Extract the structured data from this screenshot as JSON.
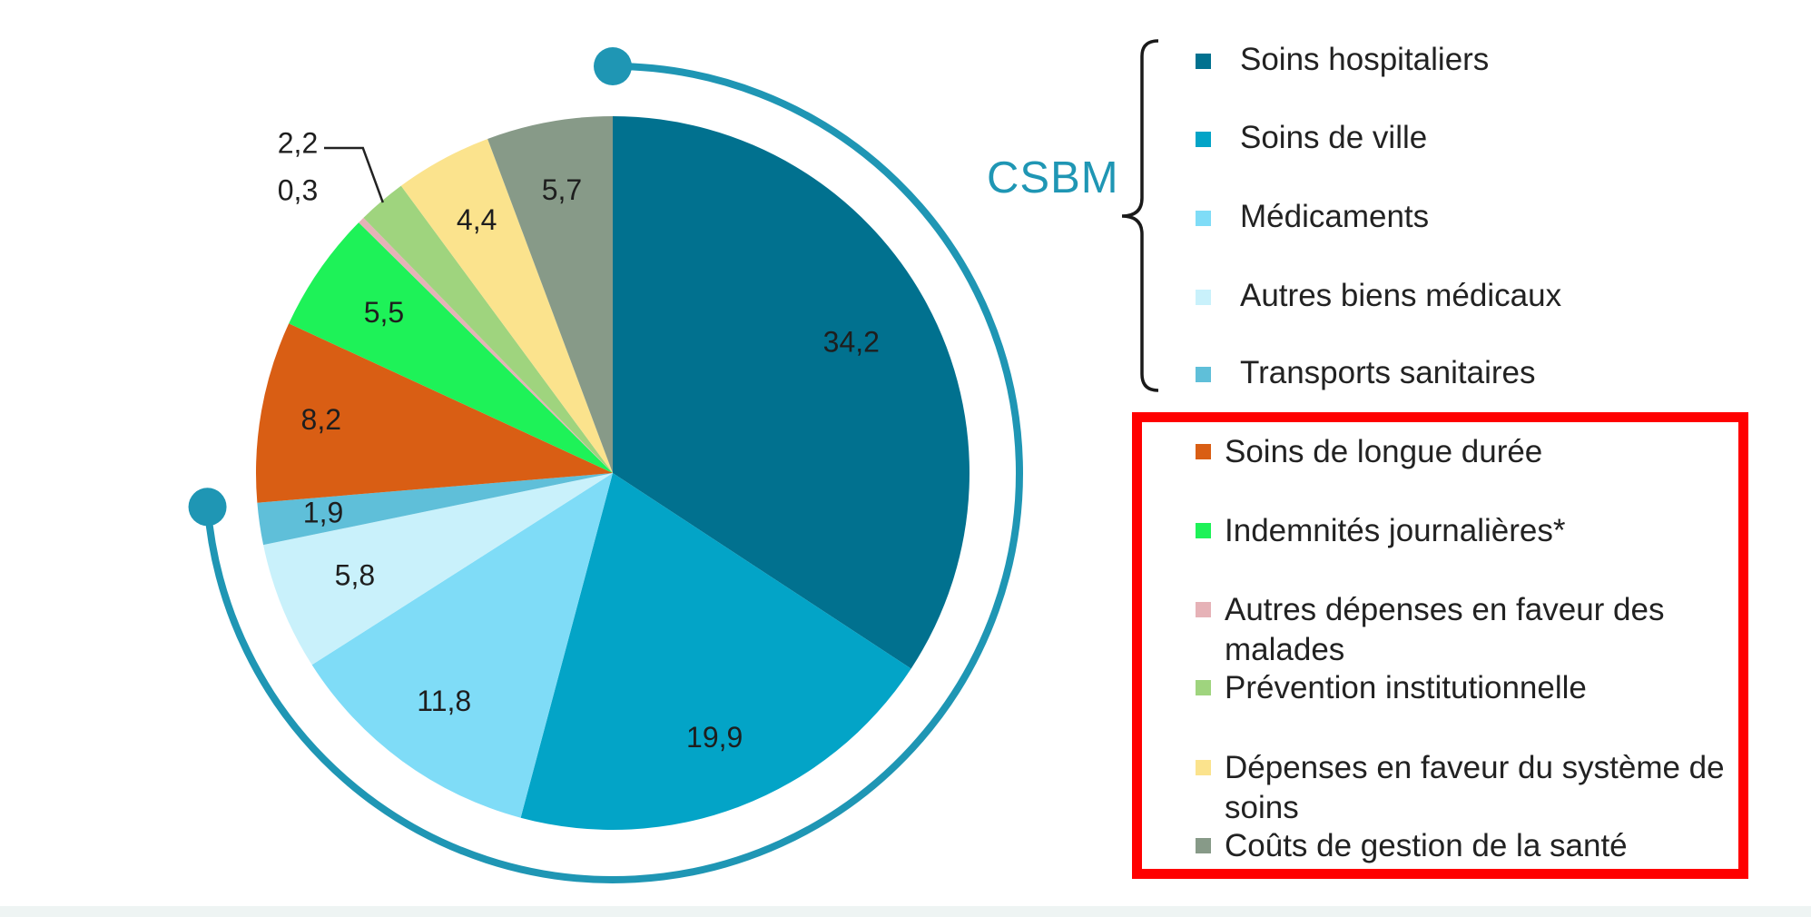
{
  "chart_data": {
    "type": "pie",
    "values": [
      34.2,
      19.9,
      11.8,
      5.8,
      1.9,
      8.2,
      5.5,
      0.3,
      2.2,
      4.4,
      5.7
    ],
    "value_labels": [
      "34,2",
      "19,9",
      "11,8",
      "5,8",
      "1,9",
      "8,2",
      "5,5",
      "0,3",
      "2,2",
      "4,4",
      "5,7"
    ],
    "categories": [
      "Soins hospitaliers",
      "Soins de ville",
      "Médicaments",
      "Autres biens médicaux",
      "Transports sanitaires",
      "Soins de longue durée",
      "Indemnités journalières*",
      "Autres dépenses en faveur des malades",
      "Prévention institutionnelle",
      "Dépenses en faveur du système de soins",
      "Coûts de gestion de la santé"
    ],
    "colors": [
      "#01718f",
      "#03a4c7",
      "#7fdcf7",
      "#c9f1fb",
      "#5fbfd9",
      "#d95e14",
      "#1ef258",
      "#e6b2b7",
      "#9fd47e",
      "#fbe38d",
      "#879a88"
    ],
    "start_angle_deg": 0,
    "direction": "clockwise",
    "group_label": "CSBM",
    "legend": {
      "group": [
        "Soins hospitaliers",
        "Soins de ville",
        "Médicaments",
        "Autres biens médicaux",
        "Transports sanitaires"
      ],
      "highlighted": [
        [
          "Soins de longue durée"
        ],
        [
          "Indemnités journalières*"
        ],
        [
          "Autres dépenses en faveur des",
          "malades"
        ],
        [
          "Prévention institutionnelle"
        ],
        [
          "Dépenses en faveur du système de",
          "soins"
        ],
        [
          "Coûts de gestion de la santé"
        ]
      ]
    },
    "highlight_color": "#ff0000",
    "arc_color": "#1f96b4"
  }
}
